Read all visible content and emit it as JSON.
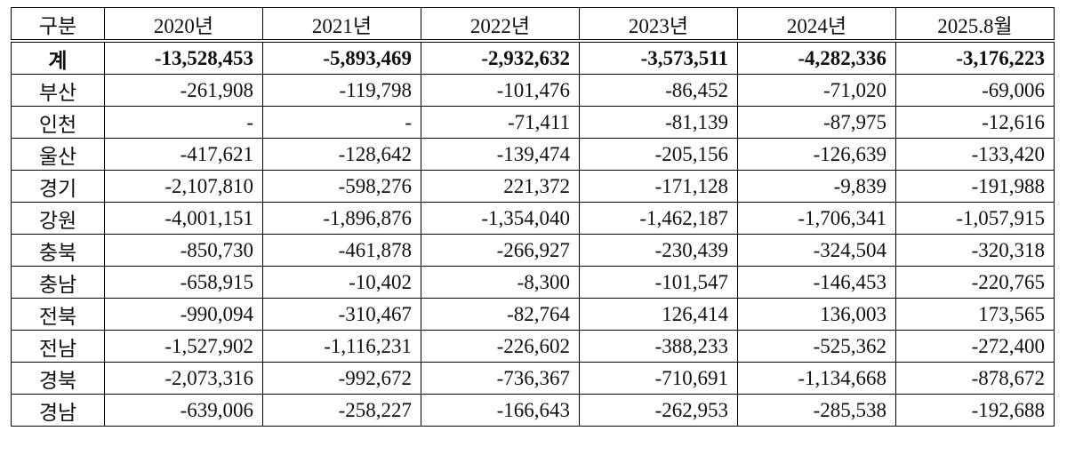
{
  "table": {
    "header": [
      "구분",
      "2020년",
      "2021년",
      "2022년",
      "2023년",
      "2024년",
      "2025.8월"
    ],
    "rows": [
      [
        "계",
        "-13,528,453",
        "-5,893,469",
        "-2,932,632",
        "-3,573,511",
        "-4,282,336",
        "-3,176,223"
      ],
      [
        "부산",
        "-261,908",
        "-119,798",
        "-101,476",
        "-86,452",
        "-71,020",
        "-69,006"
      ],
      [
        "인천",
        "-",
        "-",
        "-71,411",
        "-81,139",
        "-87,975",
        "-12,616"
      ],
      [
        "울산",
        "-417,621",
        "-128,642",
        "-139,474",
        "-205,156",
        "-126,639",
        "-133,420"
      ],
      [
        "경기",
        "-2,107,810",
        "-598,276",
        "221,372",
        "-171,128",
        "-9,839",
        "-191,988"
      ],
      [
        "강원",
        "-4,001,151",
        "-1,896,876",
        "-1,354,040",
        "-1,462,187",
        "-1,706,341",
        "-1,057,915"
      ],
      [
        "충북",
        "-850,730",
        "-461,878",
        "-266,927",
        "-230,439",
        "-324,504",
        "-320,318"
      ],
      [
        "충남",
        "-658,915",
        "-10,402",
        "-8,300",
        "-101,547",
        "-146,453",
        "-220,765"
      ],
      [
        "전북",
        "-990,094",
        "-310,467",
        "-82,764",
        "126,414",
        "136,003",
        "173,565"
      ],
      [
        "전남",
        "-1,527,902",
        "-1,116,231",
        "-226,602",
        "-388,233",
        "-525,362",
        "-272,400"
      ],
      [
        "경북",
        "-2,073,316",
        "-992,672",
        "-736,367",
        "-710,691",
        "-1,134,668",
        "-878,672"
      ],
      [
        "경남",
        "-639,006",
        "-258,227",
        "-166,643",
        "-262,953",
        "-285,538",
        "-192,688"
      ]
    ]
  }
}
